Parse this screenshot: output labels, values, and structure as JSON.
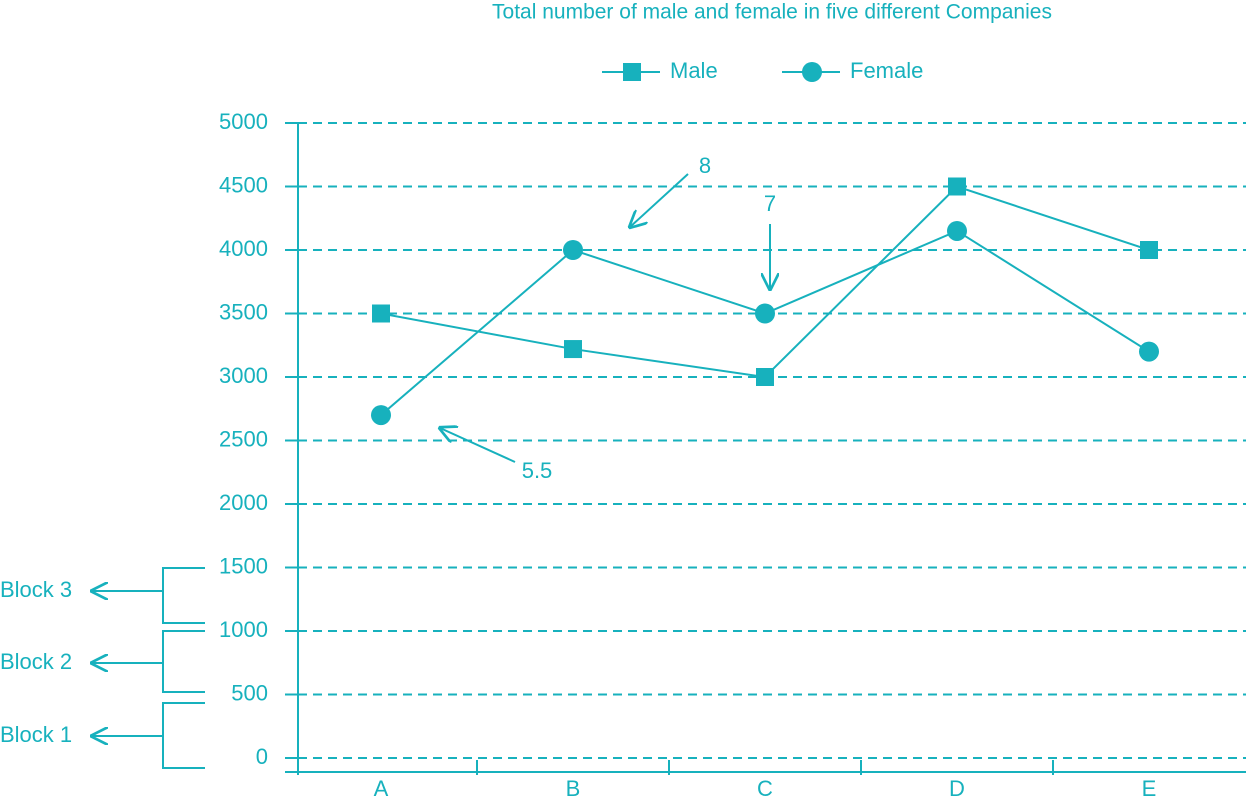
{
  "chart_data": {
    "type": "line",
    "title": "Total number of male and female in five different Companies",
    "categories": [
      "A",
      "B",
      "C",
      "D",
      "E"
    ],
    "series": [
      {
        "name": "Male",
        "color": "#17b1bd",
        "marker": "square",
        "values": [
          3500,
          3220,
          3000,
          4500,
          4000
        ]
      },
      {
        "name": "Female",
        "color": "#17b1bd",
        "marker": "circle",
        "values": [
          2700,
          4000,
          3500,
          4150,
          3200
        ]
      }
    ],
    "ylim": [
      0,
      5000
    ],
    "yticks": [
      0,
      500,
      1000,
      1500,
      2000,
      2500,
      3000,
      3500,
      4000,
      4500,
      5000
    ],
    "grid": true,
    "legend": "top",
    "annotations": [
      "8",
      "7",
      "5.5"
    ],
    "blocks": [
      "Block 3",
      "Block 2",
      "Block 1"
    ]
  }
}
